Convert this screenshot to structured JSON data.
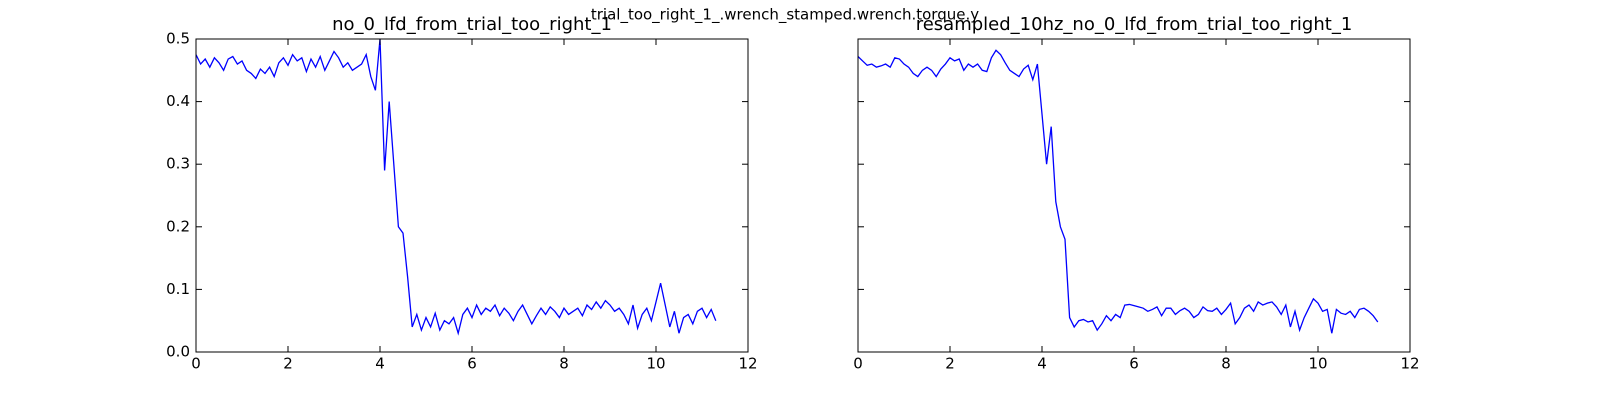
{
  "figure_title": "trial_too_right_1_.wrench_stamped.wrench.torque.y",
  "chart_data": [
    {
      "type": "line",
      "title": "no_0_lfd_from_trial_too_right_1",
      "color": "#0000ff",
      "x": [
        0,
        0.1,
        0.2,
        0.3,
        0.4,
        0.5,
        0.6,
        0.7,
        0.8,
        0.9,
        1,
        1.1,
        1.2,
        1.3,
        1.4,
        1.5,
        1.6,
        1.7,
        1.8,
        1.9,
        2,
        2.1,
        2.2,
        2.3,
        2.4,
        2.5,
        2.6,
        2.7,
        2.8,
        2.9,
        3,
        3.1,
        3.2,
        3.3,
        3.4,
        3.5,
        3.6,
        3.7,
        3.8,
        3.9,
        4,
        4.1,
        4.2,
        4.3,
        4.4,
        4.5,
        4.6,
        4.7,
        4.8,
        4.9,
        5,
        5.1,
        5.2,
        5.3,
        5.4,
        5.5,
        5.6,
        5.7,
        5.8,
        5.9,
        6,
        6.1,
        6.2,
        6.3,
        6.4,
        6.5,
        6.6,
        6.7,
        6.8,
        6.9,
        7,
        7.1,
        7.2,
        7.3,
        7.4,
        7.5,
        7.6,
        7.7,
        7.8,
        7.9,
        8,
        8.1,
        8.2,
        8.3,
        8.4,
        8.5,
        8.6,
        8.7,
        8.8,
        8.9,
        9,
        9.1,
        9.2,
        9.3,
        9.4,
        9.5,
        9.6,
        9.7,
        9.8,
        9.9,
        10,
        10.1,
        10.2,
        10.3,
        10.4,
        10.5,
        10.6,
        10.7,
        10.8,
        10.9,
        11,
        11.1,
        11.2,
        11.3
      ],
      "values": [
        0.475,
        0.46,
        0.468,
        0.455,
        0.47,
        0.462,
        0.45,
        0.468,
        0.472,
        0.46,
        0.465,
        0.45,
        0.445,
        0.437,
        0.452,
        0.445,
        0.455,
        0.44,
        0.462,
        0.47,
        0.458,
        0.475,
        0.465,
        0.47,
        0.448,
        0.468,
        0.455,
        0.472,
        0.45,
        0.465,
        0.48,
        0.47,
        0.455,
        0.462,
        0.45,
        0.455,
        0.46,
        0.475,
        0.44,
        0.418,
        0.5,
        0.29,
        0.4,
        0.3,
        0.2,
        0.19,
        0.12,
        0.04,
        0.06,
        0.035,
        0.055,
        0.04,
        0.062,
        0.035,
        0.05,
        0.045,
        0.055,
        0.03,
        0.06,
        0.07,
        0.055,
        0.075,
        0.06,
        0.07,
        0.065,
        0.075,
        0.058,
        0.07,
        0.062,
        0.05,
        0.065,
        0.075,
        0.06,
        0.045,
        0.058,
        0.07,
        0.06,
        0.072,
        0.065,
        0.055,
        0.07,
        0.06,
        0.065,
        0.07,
        0.058,
        0.075,
        0.068,
        0.08,
        0.07,
        0.082,
        0.075,
        0.065,
        0.07,
        0.06,
        0.045,
        0.075,
        0.038,
        0.06,
        0.07,
        0.05,
        0.08,
        0.11,
        0.075,
        0.04,
        0.065,
        0.03,
        0.055,
        0.06,
        0.045,
        0.065,
        0.07,
        0.055,
        0.068,
        0.05
      ],
      "xlim": [
        0,
        12
      ],
      "xticks": [
        0,
        2,
        4,
        6,
        8,
        10,
        12
      ],
      "ylim": [
        0,
        0.5
      ],
      "yticks": [
        {
          "value": 0,
          "label": "0.0"
        },
        0.1,
        0.2,
        0.3,
        0.4,
        0.5
      ],
      "ytick_labels": true
    },
    {
      "type": "line",
      "title": "resampled_10hz_no_0_lfd_from_trial_too_right_1",
      "color": "#0000ff",
      "x": [
        0,
        0.1,
        0.2,
        0.3,
        0.4,
        0.5,
        0.6,
        0.7,
        0.8,
        0.9,
        1,
        1.1,
        1.2,
        1.3,
        1.4,
        1.5,
        1.6,
        1.7,
        1.8,
        1.9,
        2,
        2.1,
        2.2,
        2.3,
        2.4,
        2.5,
        2.6,
        2.7,
        2.8,
        2.9,
        3,
        3.1,
        3.2,
        3.3,
        3.4,
        3.5,
        3.6,
        3.7,
        3.8,
        3.9,
        4,
        4.1,
        4.2,
        4.3,
        4.4,
        4.5,
        4.6,
        4.7,
        4.8,
        4.9,
        5,
        5.1,
        5.2,
        5.3,
        5.4,
        5.5,
        5.6,
        5.7,
        5.8,
        5.9,
        6,
        6.1,
        6.2,
        6.3,
        6.4,
        6.5,
        6.6,
        6.7,
        6.8,
        6.9,
        7,
        7.1,
        7.2,
        7.3,
        7.4,
        7.5,
        7.6,
        7.7,
        7.8,
        7.9,
        8,
        8.1,
        8.2,
        8.3,
        8.4,
        8.5,
        8.6,
        8.7,
        8.8,
        8.9,
        9,
        9.1,
        9.2,
        9.3,
        9.4,
        9.5,
        9.6,
        9.7,
        9.8,
        9.9,
        10,
        10.1,
        10.2,
        10.3,
        10.4,
        10.5,
        10.6,
        10.7,
        10.8,
        10.9,
        11,
        11.1,
        11.2,
        11.3
      ],
      "values": [
        0.472,
        0.465,
        0.458,
        0.46,
        0.455,
        0.457,
        0.46,
        0.455,
        0.47,
        0.468,
        0.46,
        0.455,
        0.445,
        0.44,
        0.45,
        0.455,
        0.45,
        0.44,
        0.452,
        0.46,
        0.47,
        0.465,
        0.468,
        0.45,
        0.46,
        0.455,
        0.46,
        0.45,
        0.448,
        0.47,
        0.482,
        0.475,
        0.462,
        0.45,
        0.445,
        0.44,
        0.452,
        0.458,
        0.435,
        0.46,
        0.38,
        0.3,
        0.36,
        0.24,
        0.2,
        0.18,
        0.055,
        0.04,
        0.05,
        0.052,
        0.048,
        0.05,
        0.035,
        0.045,
        0.058,
        0.05,
        0.06,
        0.055,
        0.075,
        0.076,
        0.074,
        0.072,
        0.07,
        0.065,
        0.068,
        0.072,
        0.058,
        0.07,
        0.07,
        0.06,
        0.066,
        0.07,
        0.065,
        0.055,
        0.06,
        0.072,
        0.066,
        0.065,
        0.07,
        0.06,
        0.068,
        0.078,
        0.045,
        0.055,
        0.07,
        0.075,
        0.065,
        0.08,
        0.075,
        0.078,
        0.08,
        0.072,
        0.06,
        0.075,
        0.04,
        0.065,
        0.035,
        0.055,
        0.07,
        0.085,
        0.078,
        0.065,
        0.068,
        0.03,
        0.068,
        0.062,
        0.06,
        0.065,
        0.055,
        0.068,
        0.07,
        0.065,
        0.058,
        0.048
      ],
      "xlim": [
        0,
        12
      ],
      "xticks": [
        0,
        2,
        4,
        6,
        8,
        10,
        12
      ],
      "ylim": [
        0,
        0.5
      ],
      "yticks": [
        {
          "value": 0,
          "label": "0.0"
        },
        0.1,
        0.2,
        0.3,
        0.4,
        0.5
      ],
      "ytick_labels": false
    }
  ]
}
